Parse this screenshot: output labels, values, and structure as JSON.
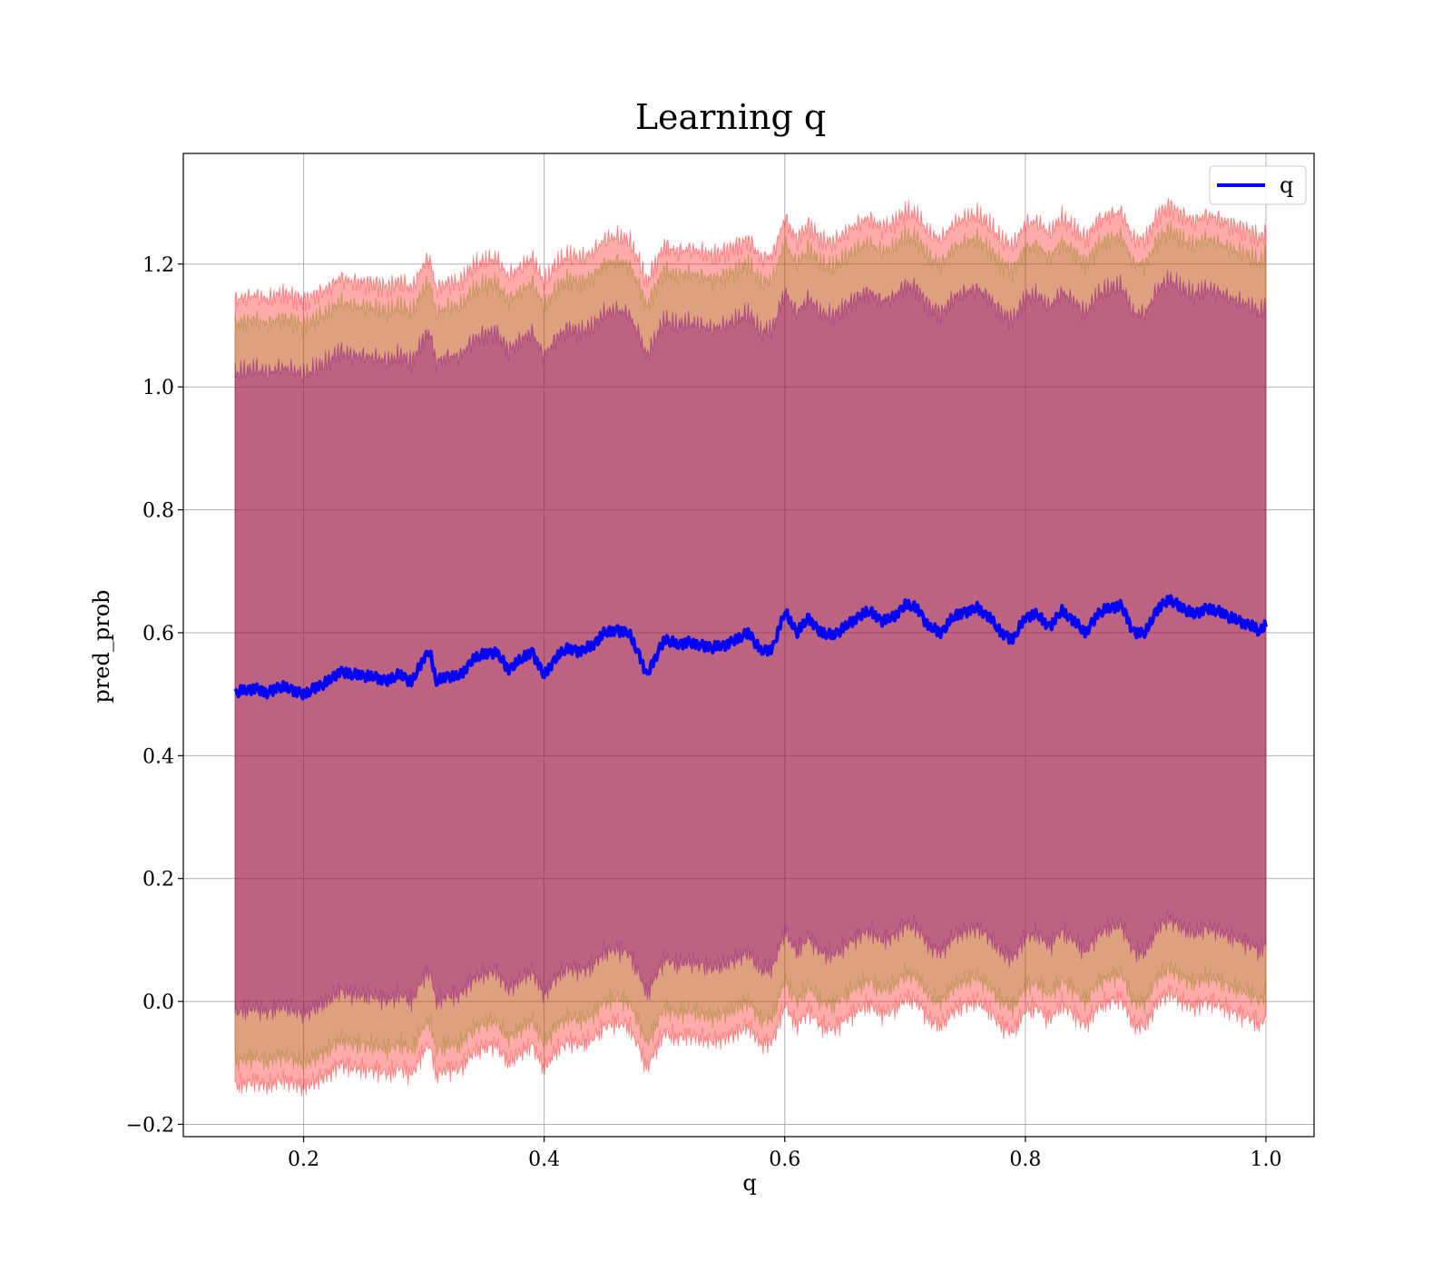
{
  "chart_data": {
    "type": "line",
    "title": "Learning q",
    "xlabel": "q",
    "ylabel": "pred_prob",
    "xlim": [
      0.1,
      1.04
    ],
    "ylim": [
      -0.22,
      1.38
    ],
    "x_ticks": [
      0.2,
      0.4,
      0.6,
      0.8,
      1.0
    ],
    "x_tick_labels": [
      "0.2",
      "0.4",
      "0.6",
      "0.8",
      "1.0"
    ],
    "y_ticks": [
      -0.2,
      0.0,
      0.2,
      0.4,
      0.6,
      0.8,
      1.0,
      1.2
    ],
    "y_tick_labels": [
      "−0.2",
      "0.0",
      "0.2",
      "0.4",
      "0.6",
      "0.8",
      "1.0",
      "1.2"
    ],
    "grid": true,
    "legend": {
      "position": "top-right",
      "entries": [
        "q"
      ]
    },
    "colors": {
      "line": "#0000ff",
      "outer_band": "#ff0000",
      "middle_band": "#808000",
      "inner_band": "#800080"
    },
    "bands": [
      {
        "level": "outer",
        "half_width": 0.64,
        "opacity": 0.33
      },
      {
        "level": "middle",
        "half_width": 0.6,
        "opacity": 0.25
      },
      {
        "level": "inner",
        "half_width": 0.52,
        "opacity": 0.38
      }
    ],
    "series": [
      {
        "name": "q",
        "x": [
          0.143,
          0.15,
          0.16,
          0.17,
          0.18,
          0.19,
          0.2,
          0.21,
          0.22,
          0.23,
          0.24,
          0.25,
          0.26,
          0.27,
          0.28,
          0.29,
          0.3,
          0.305,
          0.31,
          0.32,
          0.33,
          0.34,
          0.35,
          0.36,
          0.37,
          0.38,
          0.39,
          0.4,
          0.41,
          0.42,
          0.43,
          0.44,
          0.45,
          0.46,
          0.47,
          0.48,
          0.485,
          0.49,
          0.5,
          0.51,
          0.52,
          0.53,
          0.54,
          0.55,
          0.56,
          0.57,
          0.58,
          0.59,
          0.6,
          0.61,
          0.62,
          0.63,
          0.64,
          0.65,
          0.66,
          0.67,
          0.68,
          0.69,
          0.7,
          0.71,
          0.72,
          0.73,
          0.74,
          0.75,
          0.76,
          0.77,
          0.78,
          0.79,
          0.8,
          0.81,
          0.82,
          0.83,
          0.84,
          0.85,
          0.86,
          0.87,
          0.88,
          0.89,
          0.9,
          0.91,
          0.92,
          0.93,
          0.94,
          0.95,
          0.96,
          0.97,
          0.98,
          0.99,
          0.995,
          1.0
        ],
        "y": [
          0.502,
          0.505,
          0.51,
          0.502,
          0.512,
          0.508,
          0.5,
          0.51,
          0.52,
          0.538,
          0.532,
          0.53,
          0.528,
          0.522,
          0.532,
          0.52,
          0.56,
          0.57,
          0.52,
          0.53,
          0.53,
          0.555,
          0.565,
          0.57,
          0.54,
          0.555,
          0.57,
          0.53,
          0.56,
          0.575,
          0.57,
          0.578,
          0.6,
          0.605,
          0.6,
          0.56,
          0.53,
          0.55,
          0.59,
          0.58,
          0.585,
          0.58,
          0.575,
          0.58,
          0.59,
          0.6,
          0.57,
          0.575,
          0.635,
          0.6,
          0.625,
          0.6,
          0.595,
          0.61,
          0.625,
          0.635,
          0.62,
          0.625,
          0.645,
          0.64,
          0.61,
          0.6,
          0.625,
          0.635,
          0.64,
          0.625,
          0.6,
          0.59,
          0.625,
          0.63,
          0.61,
          0.635,
          0.62,
          0.6,
          0.63,
          0.64,
          0.645,
          0.6,
          0.6,
          0.64,
          0.655,
          0.64,
          0.63,
          0.64,
          0.635,
          0.625,
          0.618,
          0.61,
          0.6,
          0.615
        ]
      }
    ]
  }
}
